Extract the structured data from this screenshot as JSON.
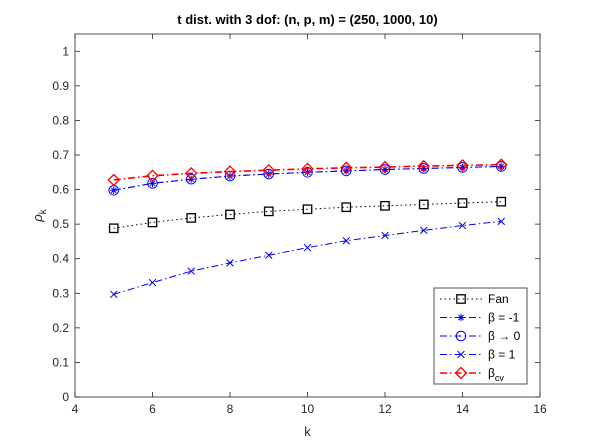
{
  "chart_data": {
    "type": "line",
    "title": "t dist. with 3 dof: (n, p, m) = (250, 1000, 10)",
    "xlabel": "k",
    "ylabel": {
      "main": "ρ",
      "sub": "k"
    },
    "xlim": [
      4,
      16
    ],
    "ylim": [
      0,
      1.05
    ],
    "xticks": [
      "4",
      "6",
      "8",
      "10",
      "12",
      "14",
      "16"
    ],
    "yticks": [
      "0",
      "0.1",
      "0.2",
      "0.3",
      "0.4",
      "0.5",
      "0.6",
      "0.7",
      "0.8",
      "0.9",
      "1"
    ],
    "grid": false,
    "legend_position": "bottom-right",
    "x": [
      5,
      6,
      7,
      8,
      9,
      10,
      11,
      12,
      13,
      14,
      15
    ],
    "series": [
      {
        "name": "Fan",
        "color": "#000000",
        "dash": "dotted",
        "marker": "square",
        "values": [
          0.488,
          0.505,
          0.518,
          0.528,
          0.537,
          0.543,
          0.549,
          0.553,
          0.557,
          0.561,
          0.565
        ]
      },
      {
        "name": "β = -1",
        "color": "#0000ff",
        "dash": "dashdot",
        "marker": "asterisk",
        "values": [
          0.598,
          0.618,
          0.63,
          0.639,
          0.645,
          0.65,
          0.654,
          0.658,
          0.661,
          0.664,
          0.667
        ]
      },
      {
        "name": "β → 0",
        "color": "#0000ff",
        "dash": "dashdot",
        "marker": "circle",
        "values": [
          0.598,
          0.618,
          0.63,
          0.639,
          0.645,
          0.65,
          0.654,
          0.658,
          0.661,
          0.664,
          0.667
        ]
      },
      {
        "name": "β = 1",
        "color": "#0000ff",
        "dash": "dashdot",
        "marker": "cross",
        "values": [
          0.297,
          0.331,
          0.364,
          0.388,
          0.41,
          0.432,
          0.452,
          0.467,
          0.482,
          0.496,
          0.508
        ]
      },
      {
        "name": "β",
        "name_sub": "cv",
        "color": "#ff0000",
        "dash": "dashdot",
        "marker": "diamond",
        "values": [
          0.628,
          0.64,
          0.647,
          0.652,
          0.656,
          0.66,
          0.663,
          0.665,
          0.668,
          0.67,
          0.672
        ]
      }
    ]
  }
}
